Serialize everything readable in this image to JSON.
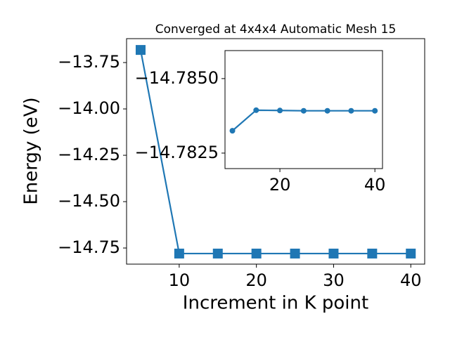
{
  "chart_data": [
    {
      "type": "line",
      "title": "Converged at 4x4x4 Automatic Mesh 15",
      "x_label": "Increment in K point",
      "y_label": "Energy (eV)",
      "x": [
        5,
        10,
        15,
        20,
        25,
        30,
        35,
        40
      ],
      "series": [
        {
          "color": "#1f77b4",
          "marker": "square",
          "values": [
            -13.682,
            -14.78,
            -14.78,
            -14.78,
            -14.78,
            -14.78,
            -14.78,
            -14.78
          ]
        }
      ],
      "xlim": [
        3.18,
        41.8
      ],
      "xticks": [
        10,
        20,
        30,
        40
      ],
      "ylim": [
        -14.837,
        -13.621
      ],
      "yticks": [
        {
          "value": -14.75,
          "label": "−14.75"
        },
        {
          "value": -14.5,
          "label": "−14.50"
        },
        {
          "value": -14.25,
          "label": "−14.25"
        },
        {
          "value": -14.0,
          "label": "−14.00"
        },
        {
          "value": -13.75,
          "label": "−13.75"
        }
      ]
    },
    {
      "type": "line",
      "x": [
        10,
        15,
        20,
        25,
        30,
        35,
        40
      ],
      "series": [
        {
          "color": "#1f77b4",
          "marker": "circle",
          "values": [
            -14.78325,
            -14.78394,
            -14.78393,
            -14.78392,
            -14.78392,
            -14.78392,
            -14.78392
          ]
        }
      ],
      "xlim": [
        8.44,
        41.6
      ],
      "xticks": [
        20,
        40
      ],
      "ylim": [
        -14.78198,
        -14.78594
      ],
      "yticks": [
        {
          "value": -14.7825,
          "label": "−14.7825"
        },
        {
          "value": -14.785,
          "label": "−14.7850"
        }
      ]
    }
  ]
}
